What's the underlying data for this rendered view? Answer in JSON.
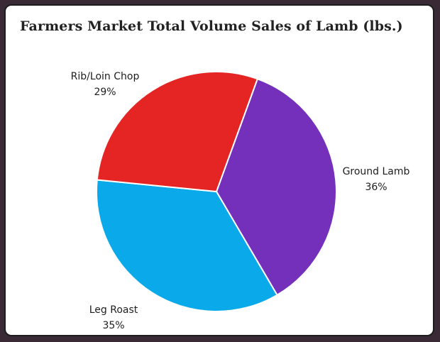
{
  "chart_data": {
    "type": "pie",
    "title": "Farmers Market Total Volume Sales of Lamb (lbs.)",
    "slices": [
      {
        "label": "Ground Lamb",
        "value": 36,
        "pct_label": "36%",
        "color": "#7430bb"
      },
      {
        "label": "Leg Roast",
        "value": 35,
        "pct_label": "35%",
        "color": "#0aaaea"
      },
      {
        "label": "Rib/Loin Chop",
        "value": 29,
        "pct_label": "29%",
        "color": "#e52424"
      }
    ],
    "legend": "none"
  }
}
